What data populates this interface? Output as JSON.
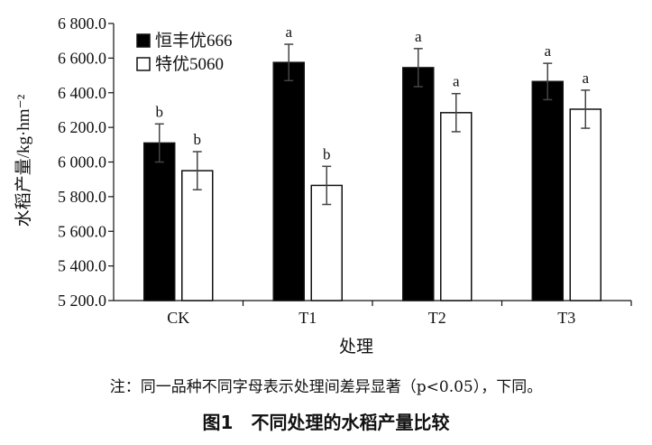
{
  "chart_data": {
    "type": "bar",
    "categories": [
      "CK",
      "T1",
      "T2",
      "T3"
    ],
    "series": [
      {
        "name": "恒丰优666",
        "fill": "#000000",
        "values": [
          6110,
          6575,
          6545,
          6465
        ],
        "errors": [
          110,
          105,
          110,
          105
        ],
        "significance": [
          "b",
          "a",
          "a",
          "a"
        ]
      },
      {
        "name": "特优5060",
        "fill": "#ffffff",
        "values": [
          5950,
          5865,
          6285,
          6305
        ],
        "errors": [
          110,
          110,
          110,
          110
        ],
        "significance": [
          "b",
          "b",
          "a",
          "a"
        ]
      }
    ],
    "ylim": [
      5200,
      6800
    ],
    "yticks": [
      5200,
      5400,
      5600,
      5800,
      6000,
      6200,
      6400,
      6600,
      6800
    ],
    "ytick_labels": [
      "5 200.0",
      "5 400.0",
      "5 600.0",
      "5 800.0",
      "6 000.0",
      "6 200.0",
      "6 400.0",
      "6 600.0",
      "6 800.0"
    ],
    "xlabel": "处理",
    "ylabel": "水稻产量/kg·hm⁻²",
    "legend_position": "top-left",
    "grid": false
  },
  "note": "注：同一品种不同字母表示处理间差异显著（p<0.05），下同。",
  "caption": "图1　不同处理的水稻产量比较"
}
